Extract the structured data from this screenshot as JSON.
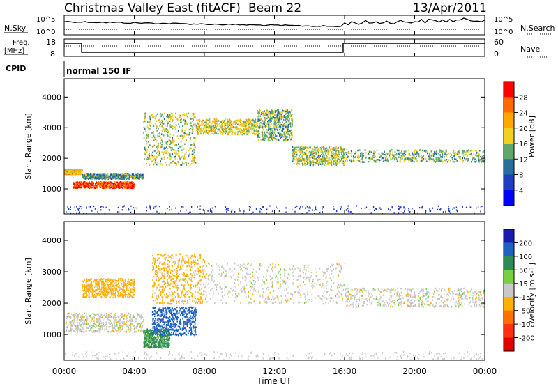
{
  "header": {
    "title": "Christmas Valley East (fitACF)",
    "beam": "Beam 22",
    "date": "13/Apr/2011"
  },
  "noise_panel": {
    "left_label": "N.Sky",
    "right_label": "N.Search",
    "tick_top_left": "10^5",
    "tick_bottom_left": "10^0",
    "tick_top_right": "10^5",
    "tick_bottom_right": "10^0"
  },
  "freq_panel": {
    "left_label_1": "Freq.",
    "left_label_2": "[MHz]",
    "right_label": "Nave",
    "ticks_left": [
      "18",
      "8"
    ],
    "ticks_right": [
      "60",
      "0"
    ]
  },
  "cpid": {
    "label": "CPID",
    "value": "normal 150 IF"
  },
  "chart_data": [
    {
      "type": "heatmap",
      "name": "power-panel",
      "ylabel": "Slant Range [km]",
      "yticks": [
        "4000",
        "3000",
        "2000",
        "1000"
      ],
      "ylim": [
        180,
        4600
      ],
      "colorbar_label": "Power [dB]",
      "colorbar_ticks": [
        "28",
        "24",
        "20",
        "16",
        "12",
        "8",
        "4"
      ],
      "colorbar_colors": [
        "#ff0000",
        "#ff6a00",
        "#ffa600",
        "#f0d020",
        "#5fa86a",
        "#2a6f9a",
        "#1e3fbf",
        "#0000ff"
      ],
      "bands": [
        {
          "t": [
            0.0,
            1.0
          ],
          "r": [
            1500,
            1650
          ],
          "level": 18
        },
        {
          "t": [
            0.5,
            4.0
          ],
          "r": [
            1050,
            1250
          ],
          "level": 26
        },
        {
          "t": [
            1.0,
            4.5
          ],
          "r": [
            1350,
            1500
          ],
          "level": 10
        },
        {
          "t": [
            4.5,
            7.5
          ],
          "r": [
            1800,
            3500
          ],
          "level": 14
        },
        {
          "t": [
            7.5,
            11.0
          ],
          "r": [
            2800,
            3300
          ],
          "level": 16
        },
        {
          "t": [
            11.0,
            13.0
          ],
          "r": [
            2600,
            3600
          ],
          "level": 12
        },
        {
          "t": [
            13.0,
            16.0
          ],
          "r": [
            1800,
            2400
          ],
          "level": 14
        },
        {
          "t": [
            16.0,
            24.0
          ],
          "r": [
            1900,
            2300
          ],
          "level": 12
        }
      ]
    },
    {
      "type": "heatmap",
      "name": "velocity-panel",
      "ylabel": "Slant Range [km]",
      "yticks": [
        "4000",
        "3000",
        "2000",
        "1000"
      ],
      "ylim": [
        180,
        4600
      ],
      "colorbar_label": "Velocity [m s-1]",
      "colorbar_ticks": [
        "200",
        "100",
        "50",
        "15",
        "-15",
        "-50",
        "-100",
        "-200"
      ],
      "colorbar_colors": [
        "#1a1ab0",
        "#2060c0",
        "#2e8b57",
        "#78d040",
        "#c8c8c8",
        "#ffb000",
        "#ff7000",
        "#ff3010",
        "#e00000"
      ],
      "bands": [
        {
          "t": [
            0.0,
            4.5
          ],
          "r": [
            1100,
            1700
          ],
          "level": 0
        },
        {
          "t": [
            1.0,
            4.0
          ],
          "r": [
            2200,
            2800
          ],
          "level": -30
        },
        {
          "t": [
            4.5,
            6.0
          ],
          "r": [
            600,
            1200
          ],
          "level": 60
        },
        {
          "t": [
            5.0,
            7.5
          ],
          "r": [
            1000,
            1900
          ],
          "level": 150
        },
        {
          "t": [
            5.0,
            8.0
          ],
          "r": [
            2000,
            3600
          ],
          "level": -30
        },
        {
          "t": [
            8.0,
            16.0
          ],
          "r": [
            2000,
            3300
          ],
          "level": 0
        },
        {
          "t": [
            16.0,
            24.0
          ],
          "r": [
            1900,
            2500
          ],
          "level": 0
        }
      ]
    }
  ],
  "xaxis": {
    "ticks": [
      "00:00",
      "04:00",
      "08:00",
      "12:00",
      "16:00",
      "20:00",
      "00:00"
    ],
    "label": "Time UT"
  }
}
